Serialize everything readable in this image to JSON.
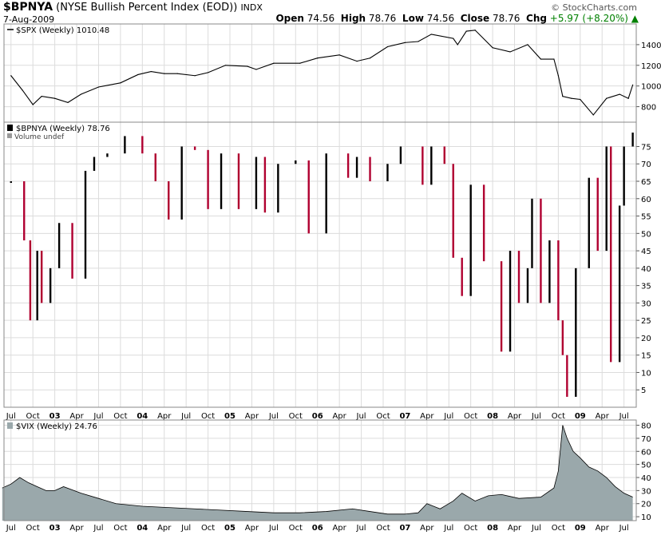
{
  "header": {
    "symbol": "$BPNYA",
    "description": "(NYSE Bullish Percent Index (EOD))",
    "exchange": "INDX",
    "date": "7-Aug-2009",
    "copyright": "© StockCharts.com",
    "open_label": "Open",
    "open_value": "74.56",
    "high_label": "High",
    "high_value": "78.76",
    "low_label": "Low",
    "low_value": "74.56",
    "close_label": "Close",
    "close_value": "78.76",
    "chg_label": "Chg",
    "chg_value": "+5.97 (+8.20%)",
    "chg_color": "#008000"
  },
  "chart_data": [
    {
      "type": "line",
      "panel": "top",
      "legend": "$SPX (Weekly) 1010.48",
      "ylim": [
        650,
        1600
      ],
      "yticks": [
        800,
        1000,
        1200,
        1400
      ],
      "x": [
        2002.5,
        2002.63,
        2002.75,
        2002.85,
        2003.0,
        2003.15,
        2003.3,
        2003.5,
        2003.75,
        2003.95,
        2004.1,
        2004.25,
        2004.4,
        2004.6,
        2004.75,
        2004.95,
        2005.2,
        2005.3,
        2005.5,
        2005.8,
        2006.0,
        2006.25,
        2006.45,
        2006.6,
        2006.8,
        2007.0,
        2007.15,
        2007.3,
        2007.55,
        2007.6,
        2007.7,
        2007.8,
        2008.0,
        2008.2,
        2008.4,
        2008.55,
        2008.7,
        2008.75,
        2008.8,
        2008.9,
        2009.0,
        2009.15,
        2009.3,
        2009.45,
        2009.55,
        2009.6
      ],
      "values": [
        1100,
        960,
        820,
        900,
        880,
        840,
        920,
        990,
        1030,
        1110,
        1140,
        1120,
        1120,
        1100,
        1130,
        1200,
        1190,
        1160,
        1220,
        1220,
        1270,
        1300,
        1240,
        1270,
        1380,
        1420,
        1430,
        1500,
        1460,
        1400,
        1530,
        1540,
        1370,
        1330,
        1400,
        1260,
        1260,
        1100,
        900,
        880,
        870,
        720,
        880,
        920,
        880,
        1010
      ]
    },
    {
      "type": "bar",
      "panel": "middle",
      "legend": "$BPNYA (Weekly) 78.76",
      "sublegend": "Volume undef",
      "ylim": [
        0,
        82
      ],
      "yticks": [
        5,
        10,
        15,
        20,
        25,
        30,
        35,
        40,
        45,
        50,
        55,
        60,
        65,
        70,
        75
      ],
      "up_color": "#000000",
      "down_color": "#b00030",
      "x": [
        2002.5,
        2002.65,
        2002.72,
        2002.8,
        2002.85,
        2002.95,
        2003.05,
        2003.2,
        2003.35,
        2003.45,
        2003.6,
        2003.8,
        2004.0,
        2004.15,
        2004.3,
        2004.45,
        2004.6,
        2004.75,
        2004.9,
        2005.1,
        2005.3,
        2005.4,
        2005.55,
        2005.75,
        2005.9,
        2006.1,
        2006.35,
        2006.45,
        2006.6,
        2006.8,
        2006.95,
        2007.2,
        2007.3,
        2007.45,
        2007.55,
        2007.65,
        2007.75,
        2007.9,
        2008.1,
        2008.2,
        2008.3,
        2008.4,
        2008.45,
        2008.55,
        2008.65,
        2008.75,
        2008.8,
        2008.85,
        2008.95,
        2009.1,
        2009.2,
        2009.3,
        2009.35,
        2009.45,
        2009.5,
        2009.6
      ],
      "values": [
        65,
        48,
        25,
        45,
        30,
        40,
        53,
        37,
        68,
        72,
        73,
        78,
        73,
        65,
        54,
        75,
        74,
        57,
        73,
        57,
        72,
        56,
        70,
        71,
        50,
        73,
        66,
        72,
        65,
        70,
        75,
        64,
        75,
        70,
        43,
        32,
        64,
        42,
        16,
        45,
        30,
        40,
        60,
        30,
        48,
        25,
        15,
        3,
        40,
        66,
        45,
        75,
        13,
        58,
        75,
        79
      ]
    },
    {
      "type": "area",
      "panel": "bottom",
      "legend": "$VIX (Weekly) 24.76",
      "ylim": [
        7,
        84
      ],
      "yticks": [
        10,
        20,
        30,
        40,
        50,
        60,
        70,
        80
      ],
      "fill": "#9aa8ab",
      "x": [
        2002.4,
        2002.5,
        2002.6,
        2002.7,
        2002.8,
        2002.9,
        2003.0,
        2003.1,
        2003.3,
        2003.5,
        2003.7,
        2004.0,
        2004.3,
        2004.6,
        2004.9,
        2005.2,
        2005.5,
        2005.8,
        2006.1,
        2006.4,
        2006.6,
        2006.8,
        2007.0,
        2007.15,
        2007.25,
        2007.4,
        2007.55,
        2007.65,
        2007.8,
        2007.95,
        2008.1,
        2008.3,
        2008.55,
        2008.7,
        2008.75,
        2008.8,
        2008.85,
        2008.92,
        2009.0,
        2009.1,
        2009.2,
        2009.3,
        2009.4,
        2009.5,
        2009.6
      ],
      "values": [
        32,
        35,
        40,
        36,
        33,
        30,
        30,
        33,
        28,
        24,
        20,
        18,
        17,
        16,
        15,
        14,
        13,
        13,
        14,
        16,
        14,
        12,
        12,
        13,
        20,
        16,
        22,
        28,
        22,
        26,
        27,
        24,
        25,
        32,
        45,
        80,
        70,
        60,
        55,
        48,
        45,
        40,
        33,
        28,
        25
      ]
    }
  ],
  "x_axis": {
    "xlim": [
      2002.42,
      2009.64
    ],
    "labels": [
      {
        "text": "Jul",
        "x": 2002.5,
        "bold": false
      },
      {
        "text": "Oct",
        "x": 2002.75,
        "bold": false
      },
      {
        "text": "03",
        "x": 2003.0,
        "bold": true
      },
      {
        "text": "Apr",
        "x": 2003.25,
        "bold": false
      },
      {
        "text": "Jul",
        "x": 2003.5,
        "bold": false
      },
      {
        "text": "Oct",
        "x": 2003.75,
        "bold": false
      },
      {
        "text": "04",
        "x": 2004.0,
        "bold": true
      },
      {
        "text": "Apr",
        "x": 2004.25,
        "bold": false
      },
      {
        "text": "Jul",
        "x": 2004.5,
        "bold": false
      },
      {
        "text": "Oct",
        "x": 2004.75,
        "bold": false
      },
      {
        "text": "05",
        "x": 2005.0,
        "bold": true
      },
      {
        "text": "Apr",
        "x": 2005.25,
        "bold": false
      },
      {
        "text": "Jul",
        "x": 2005.5,
        "bold": false
      },
      {
        "text": "Oct",
        "x": 2005.75,
        "bold": false
      },
      {
        "text": "06",
        "x": 2006.0,
        "bold": true
      },
      {
        "text": "Apr",
        "x": 2006.25,
        "bold": false
      },
      {
        "text": "Jul",
        "x": 2006.5,
        "bold": false
      },
      {
        "text": "Oct",
        "x": 2006.75,
        "bold": false
      },
      {
        "text": "07",
        "x": 2007.0,
        "bold": true
      },
      {
        "text": "Apr",
        "x": 2007.25,
        "bold": false
      },
      {
        "text": "Jul",
        "x": 2007.5,
        "bold": false
      },
      {
        "text": "Oct",
        "x": 2007.75,
        "bold": false
      },
      {
        "text": "08",
        "x": 2008.0,
        "bold": true
      },
      {
        "text": "Apr",
        "x": 2008.25,
        "bold": false
      },
      {
        "text": "Jul",
        "x": 2008.5,
        "bold": false
      },
      {
        "text": "Oct",
        "x": 2008.75,
        "bold": false
      },
      {
        "text": "09",
        "x": 2009.0,
        "bold": true
      },
      {
        "text": "Apr",
        "x": 2009.25,
        "bold": false
      },
      {
        "text": "Jul",
        "x": 2009.5,
        "bold": false
      }
    ]
  }
}
